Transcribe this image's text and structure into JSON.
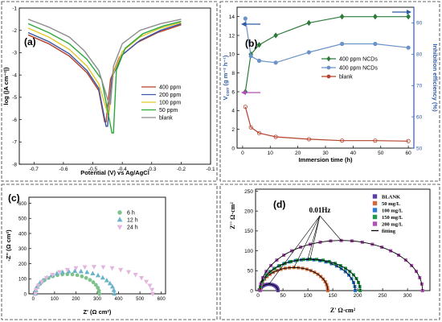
{
  "chart_data": [
    {
      "id": "a",
      "panel_label": "(a)",
      "type": "line",
      "xlabel": "Potential (V) vs Ag/AgCl",
      "ylabel": "log (|A cm⁻²|)",
      "xlim": [
        -0.75,
        -0.1
      ],
      "ylim": [
        -8,
        -1
      ],
      "xticks": [
        -0.7,
        -0.6,
        -0.5,
        -0.4,
        -0.3,
        -0.2,
        -0.1
      ],
      "yticks": [
        -8,
        -7,
        -6,
        -5,
        -4,
        -3,
        -2,
        -1
      ],
      "legend_position": "right",
      "series": [
        {
          "name": "400 ppm",
          "color": "#b5422c",
          "ecorr": -0.455,
          "cathodic": [
            [
              -0.72,
              -2.2
            ],
            [
              -0.65,
              -2.6
            ],
            [
              -0.58,
              -3.15
            ],
            [
              -0.52,
              -3.9
            ],
            [
              -0.48,
              -4.7
            ],
            [
              -0.46,
              -6.1
            ]
          ],
          "anodic": [
            [
              -0.455,
              -6.1
            ],
            [
              -0.44,
              -4.2
            ],
            [
              -0.41,
              -3.2
            ],
            [
              -0.35,
              -2.55
            ],
            [
              -0.28,
              -2.1
            ],
            [
              -0.2,
              -1.75
            ]
          ]
        },
        {
          "name": "200 ppm",
          "color": "#3a57a7",
          "ecorr": -0.45,
          "cathodic": [
            [
              -0.72,
              -2.1
            ],
            [
              -0.65,
              -2.5
            ],
            [
              -0.58,
              -3.05
            ],
            [
              -0.52,
              -3.8
            ],
            [
              -0.48,
              -4.6
            ],
            [
              -0.455,
              -6.3
            ]
          ],
          "anodic": [
            [
              -0.45,
              -6.3
            ],
            [
              -0.435,
              -4.1
            ],
            [
              -0.4,
              -3.1
            ],
            [
              -0.34,
              -2.45
            ],
            [
              -0.27,
              -2.0
            ],
            [
              -0.2,
              -1.7
            ]
          ]
        },
        {
          "name": "100 ppm",
          "color": "#e0c92a",
          "ecorr": -0.445,
          "cathodic": [
            [
              -0.72,
              -1.9
            ],
            [
              -0.65,
              -2.3
            ],
            [
              -0.58,
              -2.85
            ],
            [
              -0.52,
              -3.6
            ],
            [
              -0.48,
              -4.4
            ],
            [
              -0.45,
              -5.7
            ]
          ],
          "anodic": [
            [
              -0.445,
              -5.7
            ],
            [
              -0.43,
              -3.9
            ],
            [
              -0.4,
              -2.95
            ],
            [
              -0.34,
              -2.3
            ],
            [
              -0.27,
              -1.9
            ],
            [
              -0.2,
              -1.65
            ]
          ]
        },
        {
          "name": "50   ppm",
          "color": "#2aa83a",
          "ecorr": -0.43,
          "cathodic": [
            [
              -0.72,
              -1.7
            ],
            [
              -0.65,
              -2.1
            ],
            [
              -0.58,
              -2.6
            ],
            [
              -0.52,
              -3.3
            ],
            [
              -0.47,
              -4.2
            ],
            [
              -0.435,
              -6.6
            ]
          ],
          "anodic": [
            [
              -0.43,
              -6.6
            ],
            [
              -0.42,
              -3.8
            ],
            [
              -0.39,
              -2.8
            ],
            [
              -0.33,
              -2.15
            ],
            [
              -0.26,
              -1.8
            ],
            [
              -0.2,
              -1.6
            ]
          ]
        },
        {
          "name": "blank",
          "color": "#8c8c8c",
          "ecorr": -0.44,
          "cathodic": [
            [
              -0.72,
              -1.5
            ],
            [
              -0.65,
              -1.85
            ],
            [
              -0.58,
              -2.3
            ],
            [
              -0.53,
              -2.9
            ],
            [
              -0.48,
              -3.8
            ],
            [
              -0.445,
              -5.3
            ]
          ],
          "anodic": [
            [
              -0.44,
              -5.3
            ],
            [
              -0.43,
              -3.6
            ],
            [
              -0.4,
              -2.6
            ],
            [
              -0.34,
              -2.0
            ],
            [
              -0.27,
              -1.7
            ],
            [
              -0.2,
              -1.5
            ]
          ]
        }
      ]
    },
    {
      "id": "b",
      "panel_label": "(b)",
      "type": "line",
      "xlabel": "Immersion time (h)",
      "ylabel": "V",
      "ylabel_sub": "corr",
      "ylabel_rest": " (g m⁻² h⁻¹)",
      "y2label": "Inhibition efficiency (%)",
      "xlim": [
        -2,
        62
      ],
      "ylim": [
        0,
        15
      ],
      "y2lim": [
        50,
        95
      ],
      "xticks": [
        0,
        10,
        20,
        30,
        40,
        50,
        60
      ],
      "yticks": [
        0,
        2,
        4,
        6,
        8,
        10,
        12,
        14
      ],
      "y2ticks": [
        50,
        60,
        70,
        80,
        90
      ],
      "legend_position": "right",
      "series": [
        {
          "name": "400 ppm NCDs",
          "color": "#2c7a3a",
          "marker": "diamond",
          "axis": "right",
          "x": [
            1,
            3,
            6,
            12,
            24,
            36,
            48,
            60
          ],
          "y": [
            68,
            80,
            83,
            86,
            90,
            92,
            92,
            92
          ]
        },
        {
          "name": "400 ppm NCDs",
          "color": "#6a93c8",
          "marker": "circle",
          "axis": "left",
          "x": [
            1,
            3,
            6,
            12,
            24,
            36,
            48,
            60
          ],
          "y": [
            13.8,
            9.8,
            9.3,
            9.1,
            10.2,
            11.1,
            11.1,
            10.7
          ]
        },
        {
          "name": "blank",
          "color": "#b5422c",
          "marker": "circle",
          "axis": "left",
          "x": [
            1,
            3,
            6,
            12,
            24,
            36,
            48,
            60
          ],
          "y": [
            4.4,
            2.2,
            1.6,
            1.2,
            0.95,
            0.8,
            0.8,
            0.75
          ]
        }
      ]
    },
    {
      "id": "c",
      "panel_label": "(c)",
      "type": "scatter",
      "xlabel": "Z' (Ω cm²)",
      "ylabel": "-Z'' (Ω cm²)",
      "xlim": [
        -20,
        620
      ],
      "ylim": [
        0,
        640
      ],
      "xticks": [
        0,
        100,
        200,
        300,
        400,
        500,
        600
      ],
      "yticks": [
        0,
        100,
        200,
        300,
        400,
        500,
        600
      ],
      "legend_position": "top-center",
      "series": [
        {
          "name": "6 h",
          "color": "#7ec28b",
          "marker": "circle",
          "x0": 10,
          "x1": 310,
          "peak": 130
        },
        {
          "name": "12 h",
          "color": "#6bb3c9",
          "marker": "triangle",
          "x0": 10,
          "x1": 380,
          "peak": 150
        },
        {
          "name": "24 h",
          "color": "#e3b6e0",
          "marker": "triangle-down",
          "x0": 10,
          "x1": 560,
          "peak": 180
        }
      ]
    },
    {
      "id": "d",
      "panel_label": "(d)",
      "type": "scatter",
      "xlabel": "Z'   Ω·cm²",
      "ylabel": "Z''   Ω·cm²",
      "xlim": [
        -5,
        345
      ],
      "ylim": [
        0,
        255
      ],
      "xticks": [
        0,
        50,
        100,
        150,
        200,
        250,
        300
      ],
      "yticks": [
        0,
        50,
        100,
        150,
        200,
        250
      ],
      "legend_position": "top-right",
      "annotation": "0.01Hz",
      "series": [
        {
          "name": "BLANK",
          "color": "#5a3ea6",
          "marker": "square",
          "x0": 4,
          "x1": 40,
          "peak": 16
        },
        {
          "name": "50   mg/L",
          "color": "#d36a3c",
          "marker": "square",
          "x0": 4,
          "x1": 140,
          "peak": 58
        },
        {
          "name": "100 mg/L",
          "color": "#2f7bd0",
          "marker": "square",
          "x0": 4,
          "x1": 195,
          "peak": 78
        },
        {
          "name": "150 mg/L",
          "color": "#1f9a4a",
          "marker": "square",
          "x0": 4,
          "x1": 205,
          "peak": 79
        },
        {
          "name": "200 mg/L",
          "color": "#b04fb5",
          "marker": "square",
          "x0": 4,
          "x1": 330,
          "peak": 126
        },
        {
          "name": "fitting",
          "color": "#000000",
          "marker": "line"
        }
      ]
    }
  ]
}
